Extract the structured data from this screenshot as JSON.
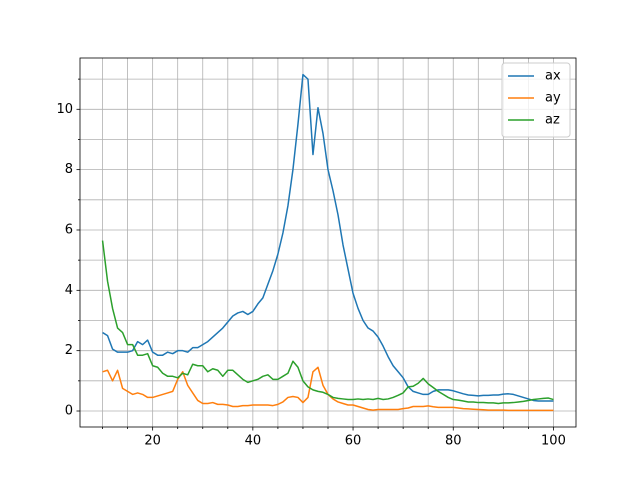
{
  "chart_data": {
    "type": "line",
    "x": [
      10,
      11,
      12,
      13,
      14,
      15,
      16,
      17,
      18,
      19,
      20,
      21,
      22,
      23,
      24,
      25,
      26,
      27,
      28,
      29,
      30,
      31,
      32,
      33,
      34,
      35,
      36,
      37,
      38,
      39,
      40,
      41,
      42,
      43,
      44,
      45,
      46,
      47,
      48,
      49,
      50,
      51,
      52,
      53,
      54,
      55,
      56,
      57,
      58,
      59,
      60,
      61,
      62,
      63,
      64,
      65,
      66,
      67,
      68,
      69,
      70,
      71,
      72,
      73,
      74,
      75,
      76,
      77,
      78,
      79,
      80,
      81,
      82,
      83,
      84,
      85,
      86,
      87,
      88,
      89,
      90,
      91,
      92,
      93,
      94,
      95,
      96,
      97,
      98,
      99,
      100
    ],
    "series": [
      {
        "name": "ax",
        "color": "#1f77b4",
        "values": [
          2.6,
          2.5,
          2.05,
          1.95,
          1.95,
          1.95,
          2.0,
          2.3,
          2.2,
          2.35,
          1.95,
          1.85,
          1.85,
          1.95,
          1.9,
          2.0,
          2.0,
          1.95,
          2.1,
          2.1,
          2.2,
          2.3,
          2.45,
          2.6,
          2.75,
          2.95,
          3.15,
          3.25,
          3.3,
          3.2,
          3.3,
          3.55,
          3.75,
          4.2,
          4.65,
          5.2,
          5.9,
          6.8,
          8.0,
          9.5,
          11.15,
          11.0,
          8.5,
          10.05,
          9.2,
          8.0,
          7.3,
          6.5,
          5.5,
          4.7,
          3.9,
          3.4,
          3.0,
          2.75,
          2.65,
          2.45,
          2.15,
          1.8,
          1.5,
          1.3,
          1.1,
          0.8,
          0.65,
          0.6,
          0.55,
          0.55,
          0.65,
          0.7,
          0.7,
          0.7,
          0.67,
          0.62,
          0.57,
          0.53,
          0.52,
          0.5,
          0.52,
          0.52,
          0.53,
          0.53,
          0.56,
          0.57,
          0.55,
          0.5,
          0.45,
          0.4,
          0.35,
          0.33,
          0.33,
          0.33,
          0.33
        ]
      },
      {
        "name": "ay",
        "color": "#ff7f0e",
        "values": [
          1.3,
          1.35,
          1.0,
          1.35,
          0.75,
          0.65,
          0.55,
          0.6,
          0.55,
          0.45,
          0.45,
          0.5,
          0.55,
          0.6,
          0.65,
          1.05,
          1.3,
          0.85,
          0.6,
          0.35,
          0.25,
          0.25,
          0.28,
          0.22,
          0.22,
          0.2,
          0.15,
          0.15,
          0.18,
          0.18,
          0.2,
          0.2,
          0.2,
          0.2,
          0.18,
          0.22,
          0.3,
          0.45,
          0.48,
          0.45,
          0.28,
          0.45,
          1.3,
          1.45,
          0.85,
          0.55,
          0.4,
          0.3,
          0.25,
          0.2,
          0.2,
          0.15,
          0.1,
          0.05,
          0.03,
          0.05,
          0.05,
          0.05,
          0.05,
          0.05,
          0.08,
          0.1,
          0.15,
          0.15,
          0.15,
          0.17,
          0.14,
          0.12,
          0.12,
          0.12,
          0.12,
          0.1,
          0.08,
          0.07,
          0.06,
          0.05,
          0.04,
          0.03,
          0.03,
          0.03,
          0.03,
          0.02,
          0.02,
          0.02,
          0.02,
          0.02,
          0.02,
          0.02,
          0.02,
          0.02,
          0.02
        ]
      },
      {
        "name": "az",
        "color": "#2ca02c",
        "values": [
          5.65,
          4.3,
          3.4,
          2.75,
          2.6,
          2.2,
          2.2,
          1.85,
          1.85,
          1.9,
          1.5,
          1.45,
          1.25,
          1.15,
          1.15,
          1.1,
          1.25,
          1.2,
          1.55,
          1.5,
          1.5,
          1.3,
          1.4,
          1.35,
          1.15,
          1.35,
          1.35,
          1.2,
          1.05,
          0.95,
          1.0,
          1.05,
          1.15,
          1.2,
          1.05,
          1.05,
          1.15,
          1.25,
          1.65,
          1.45,
          1.0,
          0.8,
          0.7,
          0.65,
          0.62,
          0.55,
          0.45,
          0.42,
          0.4,
          0.38,
          0.38,
          0.4,
          0.38,
          0.4,
          0.38,
          0.42,
          0.38,
          0.4,
          0.45,
          0.52,
          0.6,
          0.8,
          0.82,
          0.92,
          1.08,
          0.9,
          0.78,
          0.65,
          0.55,
          0.45,
          0.38,
          0.36,
          0.33,
          0.3,
          0.3,
          0.28,
          0.28,
          0.27,
          0.27,
          0.25,
          0.27,
          0.27,
          0.28,
          0.3,
          0.32,
          0.35,
          0.38,
          0.4,
          0.42,
          0.43,
          0.38
        ]
      }
    ],
    "xlim": [
      5.5,
      104.5
    ],
    "ylim": [
      -0.53,
      11.7
    ],
    "xticks": [
      20,
      40,
      60,
      80,
      100
    ],
    "xminorticks": [
      10,
      15,
      25,
      30,
      35,
      45,
      50,
      55,
      65,
      70,
      75,
      85,
      90,
      95
    ],
    "yticks": [
      0,
      2,
      4,
      6,
      8,
      10
    ],
    "yminorticks": [
      1,
      3,
      5,
      7,
      9,
      11
    ],
    "grid": true,
    "legend": "upper right"
  }
}
